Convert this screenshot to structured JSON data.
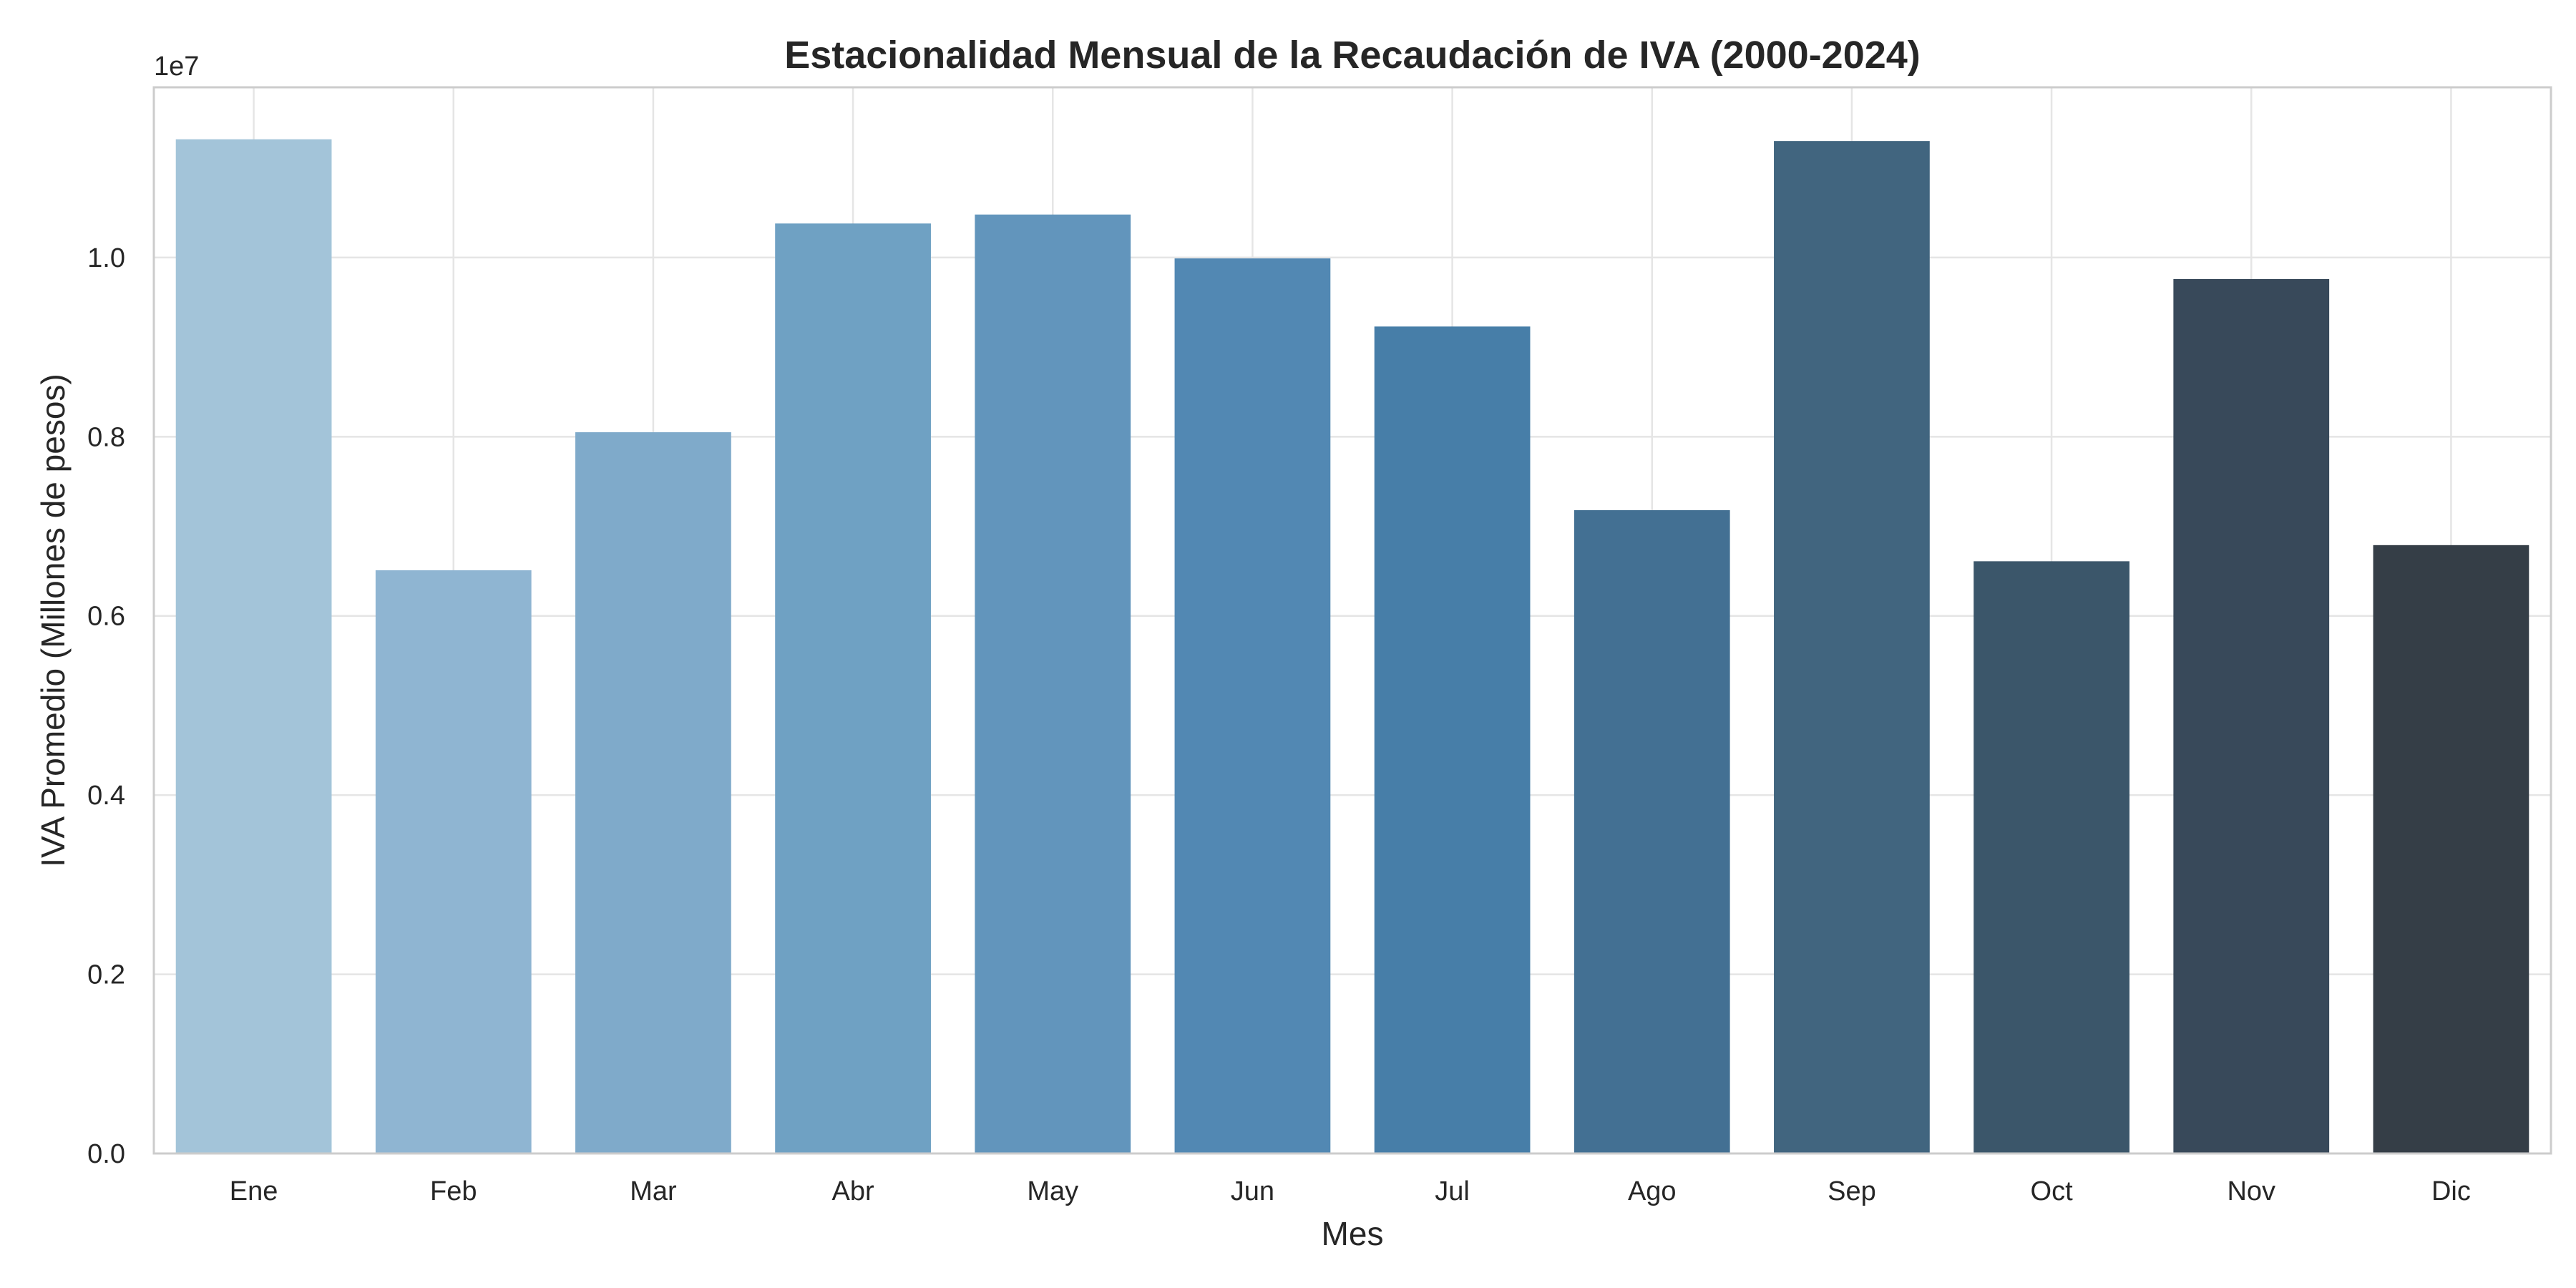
{
  "chart_data": {
    "type": "bar",
    "title": "Estacionalidad Mensual de la Recaudación de IVA (2000-2024)",
    "xlabel": "Mes",
    "ylabel": "IVA Promedio (Millones de pesos)",
    "y_offset_label": "1e7",
    "categories": [
      "Ene",
      "Feb",
      "Mar",
      "Abr",
      "May",
      "Jun",
      "Jul",
      "Ago",
      "Sep",
      "Oct",
      "Nov",
      "Dic"
    ],
    "values": [
      11320000,
      6510000,
      8050000,
      10380000,
      10480000,
      9990000,
      9230000,
      7180000,
      11300000,
      6610000,
      9760000,
      6790000
    ],
    "ylim": [
      0,
      11900000
    ],
    "yticks": [
      0,
      2000000,
      4000000,
      6000000,
      8000000,
      10000000
    ],
    "ytick_labels": [
      "0.0",
      "0.2",
      "0.4",
      "0.6",
      "0.8",
      "1.0"
    ],
    "colors": [
      "#a3c4d9",
      "#8fb5d2",
      "#7faaca",
      "#6fa1c3",
      "#6295bc",
      "#5288b3",
      "#477ea8",
      "#437093",
      "#41657f",
      "#3b566a",
      "#38495a",
      "#353e47"
    ],
    "grid": true,
    "legend": "none"
  }
}
